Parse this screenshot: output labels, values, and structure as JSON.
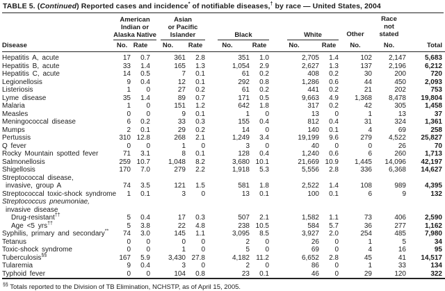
{
  "title": {
    "t1": "TABLE 5. (",
    "continued": "Continued",
    "t2": ") Reported cases and incidence",
    "sup1": "*",
    "t3": " of notifiable diseases,",
    "sup2": "†",
    "t4": " by race — United States, 2004"
  },
  "table": {
    "header": {
      "disease_label": "Disease",
      "groups": [
        {
          "lines": [
            "American",
            "Indian or",
            "Alaska Native"
          ],
          "cols": [
            "No.",
            "Rate"
          ]
        },
        {
          "lines": [
            "Asian",
            "or Pacific",
            "Islander"
          ],
          "cols": [
            "No.",
            "Rate"
          ]
        },
        {
          "lines": [
            "Black"
          ],
          "cols": [
            "No.",
            "Rate"
          ]
        },
        {
          "lines": [
            "White"
          ],
          "cols": [
            "No.",
            "Rate"
          ]
        },
        {
          "lines": [
            "Other"
          ],
          "cols": [
            "No."
          ]
        },
        {
          "lines": [
            "Race",
            "not",
            "stated"
          ],
          "cols": [
            "No."
          ]
        }
      ],
      "total_label": "Total"
    },
    "rows": [
      {
        "label": "Hepatitis A, acute",
        "values": [
          "17",
          "0.7",
          "361",
          "2.8",
          "351",
          "1.0",
          "2,705",
          "1.4",
          "102",
          "2,147",
          "5,683"
        ]
      },
      {
        "label": "Hepatitis B, acute",
        "values": [
          "33",
          "1.4",
          "165",
          "1.3",
          "1,054",
          "2.9",
          "2,627",
          "1.3",
          "137",
          "2,196",
          "6,212"
        ]
      },
      {
        "label": "Hepatitis C, acute",
        "values": [
          "14",
          "0.5",
          "7",
          "0.1",
          "61",
          "0.2",
          "408",
          "0.2",
          "30",
          "200",
          "720"
        ]
      },
      {
        "label": "Legionellosis",
        "values": [
          "9",
          "0.4",
          "12",
          "0.1",
          "292",
          "0.8",
          "1,286",
          "0.6",
          "44",
          "450",
          "2,093"
        ]
      },
      {
        "label": "Listeriosis",
        "values": [
          "1",
          "0",
          "27",
          "0.2",
          "61",
          "0.2",
          "441",
          "0.2",
          "21",
          "202",
          "753"
        ]
      },
      {
        "label": "Lyme disease",
        "values": [
          "35",
          "1.4",
          "89",
          "0.7",
          "171",
          "0.5",
          "9,663",
          "4.9",
          "1,368",
          "8,478",
          "19,804"
        ]
      },
      {
        "label": "Malaria",
        "values": [
          "1",
          "0",
          "151",
          "1.2",
          "642",
          "1.8",
          "317",
          "0.2",
          "42",
          "305",
          "1,458"
        ]
      },
      {
        "label": "Measles",
        "values": [
          "0",
          "0",
          "9",
          "0.1",
          "1",
          "0",
          "13",
          "0",
          "1",
          "13",
          "37"
        ]
      },
      {
        "label": "Meningococcal disease",
        "values": [
          "6",
          "0.2",
          "33",
          "0.3",
          "155",
          "0.4",
          "812",
          "0.4",
          "31",
          "324",
          "1,361"
        ]
      },
      {
        "label": "Mumps",
        "values": [
          "2",
          "0.1",
          "29",
          "0.2",
          "14",
          "0",
          "140",
          "0.1",
          "4",
          "69",
          "258"
        ]
      },
      {
        "label": "Pertussis",
        "values": [
          "310",
          "12.8",
          "268",
          "2.1",
          "1,249",
          "3.4",
          "19,199",
          "9.6",
          "279",
          "4,522",
          "25,827"
        ]
      },
      {
        "label": "Q fever",
        "values": [
          "0",
          "0",
          "1",
          "0",
          "3",
          "0",
          "40",
          "0",
          "0",
          "26",
          "70"
        ]
      },
      {
        "label": "Rocky Mountain spotted fever",
        "values": [
          "71",
          "3.1",
          "8",
          "0.1",
          "128",
          "0.4",
          "1,240",
          "0.6",
          "6",
          "260",
          "1,713"
        ]
      },
      {
        "label": "Salmonellosis",
        "values": [
          "259",
          "10.7",
          "1,048",
          "8.2",
          "3,680",
          "10.1",
          "21,669",
          "10.9",
          "1,445",
          "14,096",
          "42,197"
        ]
      },
      {
        "label": "Shigellosis",
        "values": [
          "170",
          "7.0",
          "279",
          "2.2",
          "1,918",
          "5.3",
          "5,556",
          "2.8",
          "336",
          "6,368",
          "14,627"
        ]
      },
      {
        "label": "Streptococcal disease,"
      },
      {
        "label": "invasive, group A",
        "indent": 1,
        "values": [
          "74",
          "3.5",
          "121",
          "1.5",
          "581",
          "1.8",
          "2,522",
          "1.4",
          "108",
          "989",
          "4,395"
        ]
      },
      {
        "label": "Streptococcal toxic-shock syndrome",
        "values": [
          "1",
          "0.1",
          "3",
          "0",
          "13",
          "0.1",
          "100",
          "0.1",
          "6",
          "9",
          "132"
        ]
      },
      {
        "label": "Streptococcus pneumoniae,",
        "italic": true
      },
      {
        "label": "invasive disease",
        "indent": 1
      },
      {
        "label": "Drug-resistant",
        "sup": "††",
        "indent": 2,
        "values": [
          "5",
          "0.4",
          "17",
          "0.3",
          "507",
          "2.1",
          "1,582",
          "1.1",
          "73",
          "406",
          "2,590"
        ]
      },
      {
        "label": "Age <5 yrs",
        "sup": "††",
        "indent": 2,
        "values": [
          "5",
          "3.8",
          "22",
          "4.8",
          "238",
          "10.5",
          "584",
          "5.7",
          "36",
          "277",
          "1,162"
        ]
      },
      {
        "label": "Syphilis, primary and secondary",
        "sup": "**",
        "values": [
          "74",
          "3.0",
          "145",
          "1.1",
          "3,095",
          "8.5",
          "3,927",
          "2.0",
          "254",
          "485",
          "7,980"
        ]
      },
      {
        "label": "Tetanus",
        "values": [
          "0",
          "0",
          "0",
          "0",
          "2",
          "0",
          "26",
          "0",
          "1",
          "5",
          "34"
        ]
      },
      {
        "label": "Toxic-shock syndrome",
        "values": [
          "0",
          "0",
          "1",
          "0",
          "5",
          "0",
          "69",
          "0",
          "4",
          "16",
          "95"
        ]
      },
      {
        "label": "Tuberculosis",
        "sup": "§§",
        "values": [
          "167",
          "5.9",
          "3,430",
          "27.8",
          "4,182",
          "11.2",
          "6,652",
          "2.8",
          "45",
          "41",
          "14,517"
        ]
      },
      {
        "label": "Tularemia",
        "values": [
          "9",
          "0.4",
          "3",
          "0",
          "2",
          "0",
          "86",
          "0",
          "1",
          "33",
          "134"
        ]
      },
      {
        "label": "Typhoid fever",
        "values": [
          "0",
          "0",
          "104",
          "0.8",
          "23",
          "0.1",
          "46",
          "0",
          "29",
          "120",
          "322"
        ]
      }
    ]
  },
  "footnote": {
    "sup": "§§",
    "text": " Totals reported to the Division of TB Elimination, NCHSTP, as of April 15, 2005."
  },
  "colors": {
    "text": "#1b1b1b",
    "rule": "#222222",
    "background": "#ffffff"
  }
}
